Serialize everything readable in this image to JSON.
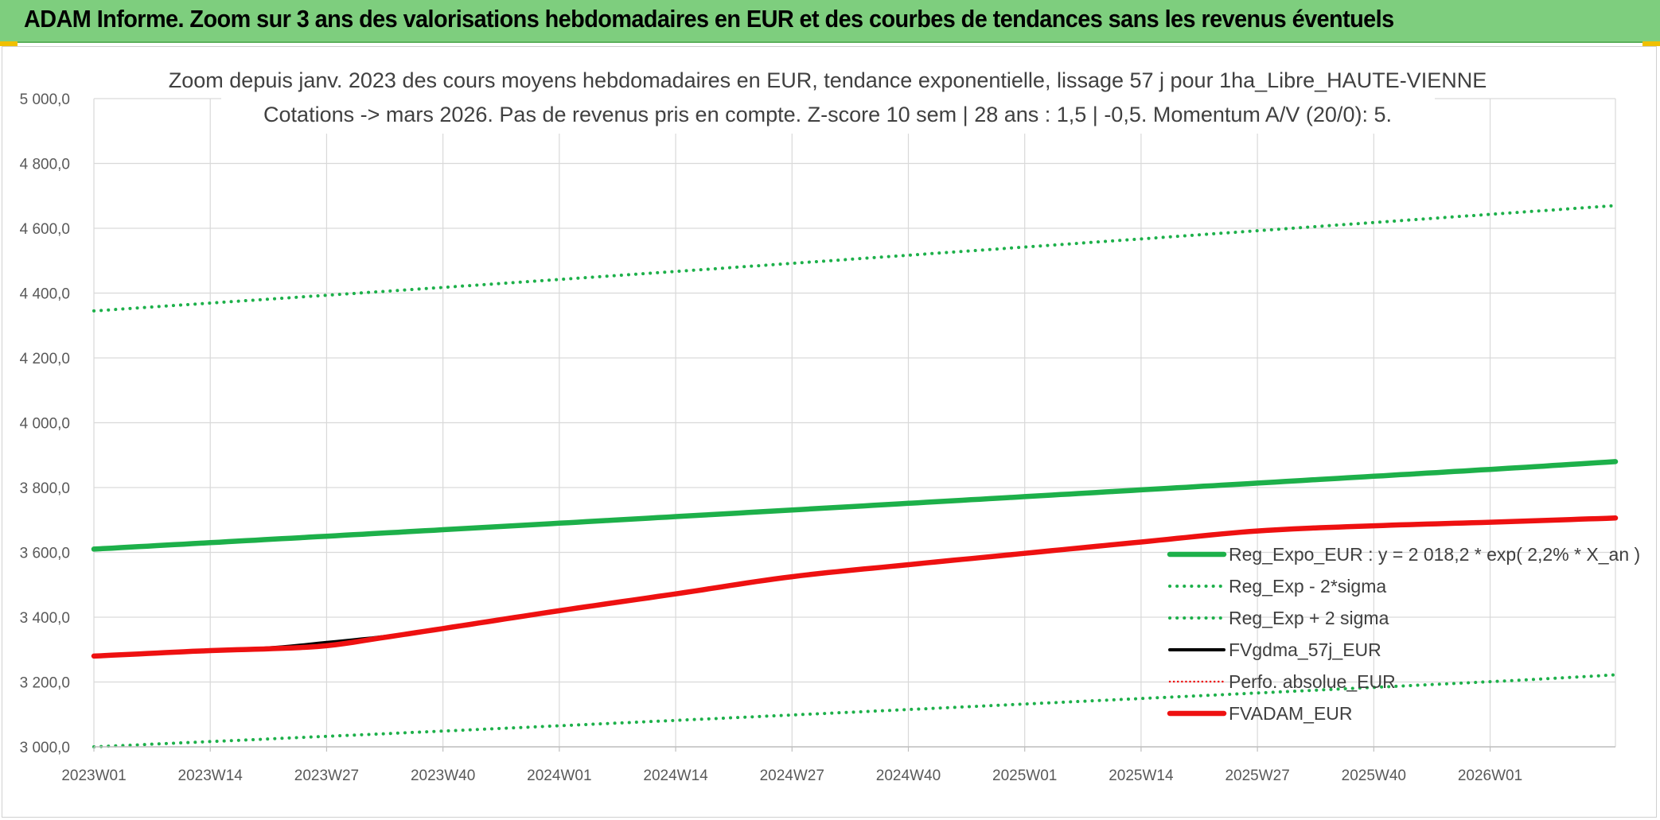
{
  "banner": {
    "title": "ADAM Informe. Zoom sur 3 ans des valorisations hebdomadaires en EUR et des courbes de tendances sans les revenus éventuels"
  },
  "colors": {
    "banner_bg": "#7ece7e",
    "reg_green": "#1db04a",
    "dotted_green": "#1db04a",
    "black": "#000000",
    "red": "#ee1111",
    "grid": "#d9d9d9"
  },
  "chart_data": {
    "type": "line",
    "title": [
      "Zoom depuis janv. 2023 des cours moyens hebdomadaires en EUR, tendance exponentielle, lissage 57 j pour 1ha_Libre_HAUTE-VIENNE",
      "Cotations -> mars 2026. Pas de revenus pris en compte. Z-score 10 sem | 28 ans : 1,5 | -0,5. Momentum A/V (20/0): 5."
    ],
    "ylim": [
      3000,
      5000
    ],
    "y_ticks": [
      "3 000,0",
      "3 200,0",
      "3 400,0",
      "3 600,0",
      "3 800,0",
      "4 000,0",
      "4 200,0",
      "4 400,0",
      "4 600,0",
      "4 800,0",
      "5 000,0"
    ],
    "y_tick_values": [
      3000,
      3200,
      3400,
      3600,
      3800,
      4000,
      4200,
      4400,
      4600,
      4800,
      5000
    ],
    "x_ticks": [
      "2023W01",
      "2023W14",
      "2023W27",
      "2023W40",
      "2024W01",
      "2024W14",
      "2024W27",
      "2024W40",
      "2025W01",
      "2025W14",
      "2025W27",
      "2025W40",
      "2026W01"
    ],
    "x_tick_index": [
      0,
      13,
      26,
      39,
      52,
      65,
      78,
      91,
      104,
      117,
      130,
      143,
      156
    ],
    "x_count": 171,
    "grid": true,
    "legend_position": "bottom-right",
    "series": [
      {
        "name": "Reg_Expo_EUR : y = 2 018,2 * exp( 2,2% *  X_an )",
        "style": "solid-thick",
        "color": "#1db04a",
        "points": [
          [
            0,
            3610
          ],
          [
            52,
            3690
          ],
          [
            104,
            3772
          ],
          [
            156,
            3856
          ],
          [
            170,
            3880
          ]
        ]
      },
      {
        "name": "Reg_Exp - 2*sigma",
        "style": "dotted",
        "color": "#1db04a",
        "points": [
          [
            0,
            3000
          ],
          [
            52,
            3065
          ],
          [
            104,
            3132
          ],
          [
            156,
            3201
          ],
          [
            170,
            3222
          ]
        ]
      },
      {
        "name": "Reg_Exp + 2 sigma",
        "style": "dotted",
        "color": "#1db04a",
        "points": [
          [
            0,
            4345
          ],
          [
            52,
            4442
          ],
          [
            104,
            4542
          ],
          [
            156,
            4643
          ],
          [
            170,
            4670
          ]
        ]
      },
      {
        "name": "FVgdma_57j_EUR",
        "style": "solid",
        "color": "#000000",
        "points": [
          [
            0,
            3280
          ],
          [
            13,
            3297
          ],
          [
            20,
            3306
          ],
          [
            26,
            3322
          ],
          [
            33,
            3342
          ],
          [
            39,
            3365
          ],
          [
            52,
            3420
          ],
          [
            65,
            3472
          ],
          [
            78,
            3527
          ],
          [
            91,
            3562
          ],
          [
            104,
            3597
          ],
          [
            117,
            3632
          ],
          [
            130,
            3668
          ],
          [
            143,
            3682
          ],
          [
            156,
            3693
          ],
          [
            170,
            3706
          ]
        ]
      },
      {
        "name": "Perfo. absolue_EUR",
        "style": "dotted-thin",
        "color": "#ee1111",
        "points": [
          [
            0,
            3280
          ],
          [
            13,
            3297
          ],
          [
            20,
            3303
          ],
          [
            26,
            3312
          ],
          [
            33,
            3340
          ],
          [
            39,
            3365
          ],
          [
            52,
            3420
          ],
          [
            65,
            3472
          ],
          [
            78,
            3525
          ],
          [
            91,
            3562
          ],
          [
            104,
            3597
          ],
          [
            117,
            3632
          ],
          [
            130,
            3666
          ],
          [
            143,
            3682
          ],
          [
            156,
            3693
          ],
          [
            170,
            3706
          ]
        ]
      },
      {
        "name": "FVADAM_EUR",
        "style": "solid-thick",
        "color": "#ee1111",
        "points": [
          [
            0,
            3280
          ],
          [
            13,
            3297
          ],
          [
            20,
            3303
          ],
          [
            26,
            3312
          ],
          [
            33,
            3340
          ],
          [
            39,
            3365
          ],
          [
            52,
            3420
          ],
          [
            65,
            3472
          ],
          [
            78,
            3525
          ],
          [
            91,
            3562
          ],
          [
            104,
            3597
          ],
          [
            117,
            3632
          ],
          [
            130,
            3666
          ],
          [
            143,
            3682
          ],
          [
            156,
            3693
          ],
          [
            170,
            3706
          ]
        ]
      }
    ]
  }
}
